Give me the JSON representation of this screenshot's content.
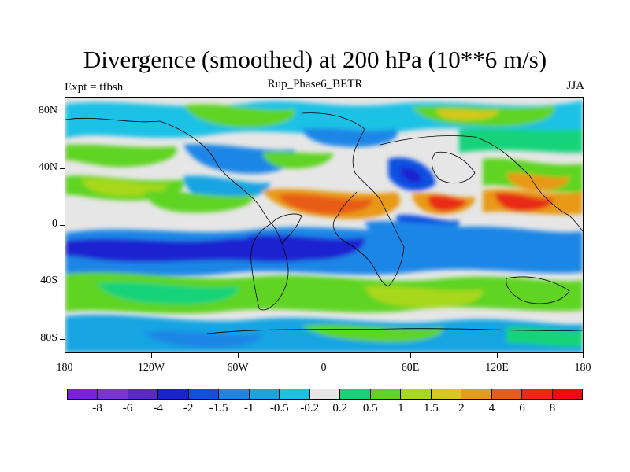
{
  "title": "Divergence (smoothed) at 200 hPa (10**6 m/s)",
  "subtitle_left": "Expt = tfbsh",
  "subtitle_center": "Rup_Phase6_BETR",
  "subtitle_right": "JJA",
  "y_axis_labels": [
    "80N",
    "40N",
    "0",
    "40S",
    "80S"
  ],
  "x_axis_labels": [
    "180",
    "120W",
    "60W",
    "0",
    "60E",
    "120E",
    "180"
  ],
  "colorbar": {
    "labels": [
      "-8",
      "-6",
      "-4",
      "-2",
      "-1.5",
      "-1",
      "-0.5",
      "-0.2",
      "0.2",
      "0.5",
      "1",
      "1.5",
      "2",
      "4",
      "6",
      "8"
    ],
    "colors": [
      "#7b1fe0",
      "#7a33d6",
      "#5a28c8",
      "#1a23d0",
      "#1050e0",
      "#1c86e6",
      "#18a4e2",
      "#1bc1e6",
      "#e6e6e6",
      "#16d37a",
      "#5fd420",
      "#a8d81c",
      "#d6c81c",
      "#e89a18",
      "#e85c16",
      "#e82a14",
      "#e80e12"
    ]
  },
  "map_data": {
    "projection": "cylindrical equidistant",
    "lon_range": [
      -180,
      180
    ],
    "lat_range": [
      -90,
      90
    ],
    "field": "200 hPa divergence, JJA, smoothed",
    "units": "10**6 m/s"
  }
}
